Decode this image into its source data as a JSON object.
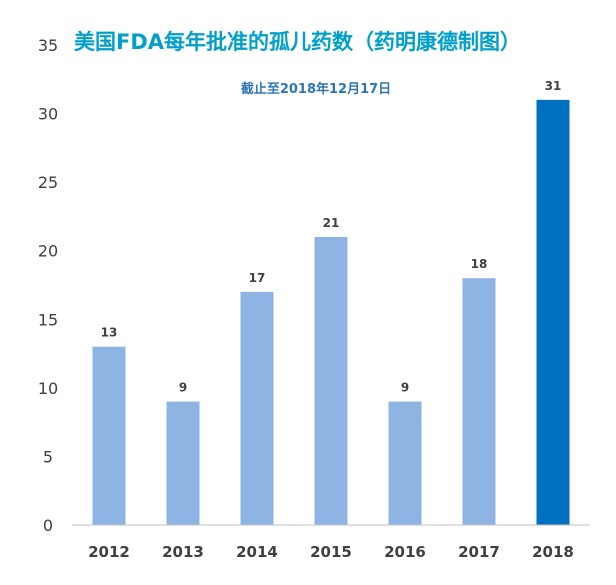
{
  "chart_data": {
    "type": "bar",
    "title": "美国FDA每年批准的孤儿药数（药明康德制图）",
    "subtitle": "截止至2018年12月17日",
    "xlabel": "",
    "ylabel": "",
    "categories": [
      "2012",
      "2013",
      "2014",
      "2015",
      "2016",
      "2017",
      "2018"
    ],
    "values": [
      13,
      9,
      17,
      21,
      9,
      18,
      31
    ],
    "ylim": [
      0,
      35
    ],
    "yticks": [
      0,
      5,
      10,
      15,
      20,
      25,
      30,
      35
    ],
    "grid": false,
    "legend": "none",
    "data_labels": true,
    "highlight_index": 6
  },
  "colors": {
    "bar": "#8EB4E3",
    "highlight_bar": "#0070C0",
    "title": "#00A0C8",
    "subtitle": "#2E75B6",
    "axis": "#BFBFBF",
    "text": "#404040"
  }
}
